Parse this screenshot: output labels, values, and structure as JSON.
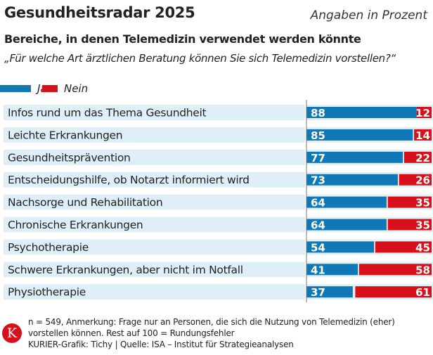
{
  "header": {
    "title": "Gesundheitsradar 2025",
    "unit_note": "Angaben in Prozent",
    "subtitle": "Bereiche, in denen Telemedizin verwendet werden könnte",
    "question": "„Für welche Art ärztlichen Beratung können Sie sich Telemedizin vorstellen?“"
  },
  "colors": {
    "ja": "#1078b4",
    "nein": "#d7101a",
    "row_band": "#dfeff8"
  },
  "chart_data": {
    "type": "bar",
    "stacked": true,
    "orientation": "horizontal",
    "xlim": [
      0,
      100
    ],
    "legend_position": "top-left",
    "categories": [
      "Infos rund um das Thema Gesundheit",
      "Leichte Erkrankungen",
      "Gesundheitsprävention",
      "Entscheidungshilfe, ob Notarzt informiert wird",
      "Nachsorge und Rehabilitation",
      "Chronische Erkrankungen",
      "Psychotherapie",
      "Schwere Erkrankungen, aber nicht im Notfall",
      "Physiotherapie"
    ],
    "series": [
      {
        "name": "Ja",
        "values": [
          88,
          85,
          77,
          73,
          64,
          64,
          54,
          41,
          37
        ]
      },
      {
        "name": "Nein",
        "values": [
          12,
          14,
          22,
          26,
          35,
          35,
          45,
          58,
          61
        ]
      }
    ]
  },
  "footer": {
    "note_line1": "n = 549, Anmerkung: Frage nur an Personen, die sich die Nutzung von Telemedizin (eher)",
    "note_line2": "vorstellen können. Rest auf 100 = Rundungsfehler",
    "credit": "KURIER-Grafik: Tichy | Quelle: ISA – Institut für Strategieanalysen",
    "logo": "K"
  }
}
